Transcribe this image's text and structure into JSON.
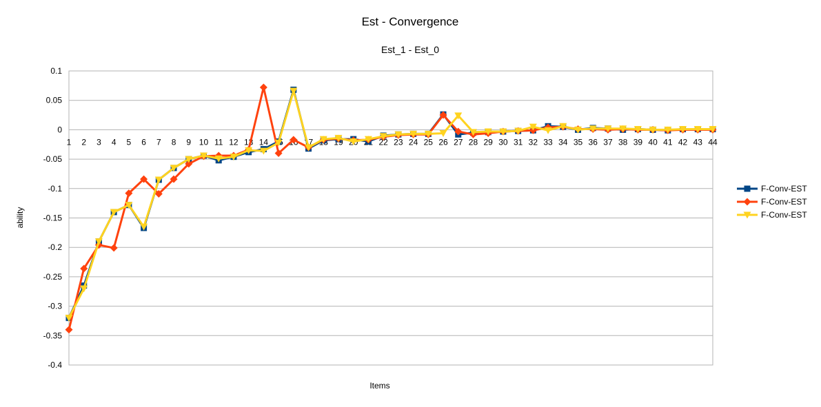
{
  "chart_data": {
    "type": "line",
    "title": "Est - Convergence",
    "subtitle": "Est_1  -  Est_0",
    "xlabel": "Items",
    "ylabel": "ability",
    "ylim": [
      -0.4,
      0.1
    ],
    "yticks": [
      0.1,
      0.05,
      0,
      -0.05,
      -0.1,
      -0.15,
      -0.2,
      -0.25,
      -0.3,
      -0.35,
      -0.4
    ],
    "grid": true,
    "legend_position": "right",
    "categories": [
      "1",
      "2",
      "3",
      "4",
      "5",
      "6",
      "7",
      "8",
      "9",
      "10",
      "11",
      "12",
      "13",
      "14",
      "15",
      "16",
      "17",
      "18",
      "19",
      "20",
      "21",
      "22",
      "23",
      "24",
      "25",
      "26",
      "27",
      "28",
      "29",
      "30",
      "31",
      "32",
      "33",
      "34",
      "35",
      "36",
      "37",
      "38",
      "39",
      "40",
      "41",
      "42",
      "43",
      "44"
    ],
    "series": [
      {
        "name": "F-Conv-EST",
        "color": "#004586",
        "marker": "square",
        "values": [
          -0.32,
          -0.265,
          -0.19,
          -0.14,
          -0.128,
          -0.167,
          -0.085,
          -0.065,
          -0.05,
          -0.044,
          -0.052,
          -0.046,
          -0.038,
          -0.033,
          -0.02,
          0.068,
          -0.032,
          -0.018,
          -0.016,
          -0.016,
          -0.02,
          -0.01,
          -0.008,
          -0.007,
          -0.007,
          0.026,
          -0.008,
          -0.005,
          -0.004,
          -0.003,
          -0.002,
          -0.001,
          0.006,
          0.005,
          0.0,
          0.003,
          0.002,
          0.0,
          0.001,
          0.0,
          -0.001,
          0.001,
          0.001,
          0.001
        ]
      },
      {
        "name": "F-Conv-EST",
        "color": "#ff420e",
        "marker": "diamond",
        "values": [
          -0.34,
          -0.236,
          -0.196,
          -0.201,
          -0.108,
          -0.084,
          -0.109,
          -0.084,
          -0.058,
          -0.045,
          -0.044,
          -0.044,
          -0.034,
          0.072,
          -0.04,
          -0.017,
          -0.03,
          -0.017,
          -0.015,
          -0.018,
          -0.017,
          -0.012,
          -0.009,
          -0.008,
          -0.008,
          0.025,
          -0.003,
          -0.008,
          -0.006,
          -0.003,
          -0.002,
          -0.001,
          0.004,
          0.005,
          0.001,
          0.001,
          0.0,
          0.001,
          0.0,
          0.0,
          -0.001,
          0.0,
          0.0,
          0.0
        ]
      },
      {
        "name": "F-Conv-EST",
        "color": "#ffd320",
        "marker": "triangle-down",
        "values": [
          -0.32,
          -0.27,
          -0.19,
          -0.14,
          -0.128,
          -0.165,
          -0.085,
          -0.065,
          -0.05,
          -0.044,
          -0.049,
          -0.046,
          -0.035,
          -0.036,
          -0.022,
          0.066,
          -0.03,
          -0.016,
          -0.014,
          -0.02,
          -0.016,
          -0.011,
          -0.008,
          -0.007,
          -0.007,
          -0.006,
          0.024,
          -0.004,
          -0.003,
          -0.003,
          -0.002,
          0.005,
          -0.001,
          0.006,
          0.0,
          0.002,
          0.002,
          0.002,
          0.001,
          0.0,
          0.0,
          0.001,
          0.001,
          0.001
        ]
      }
    ]
  }
}
